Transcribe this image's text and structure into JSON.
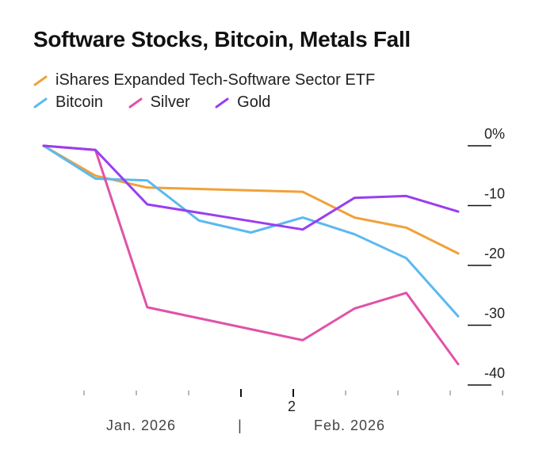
{
  "chart_data": {
    "type": "line",
    "title": "Software Stocks, Bitcoin, Metals Fall",
    "ylabel": "",
    "xlabel": "",
    "ylim": [
      -40,
      0
    ],
    "y_ticks": [
      0,
      -10,
      -20,
      -30,
      -40
    ],
    "y_tick_labels": [
      "0%",
      "-10",
      "-20",
      "-30",
      "-40"
    ],
    "x_tick_count": 9,
    "x_tick_label": "2",
    "month_labels": [
      "Jan. 2026",
      "Feb. 2026"
    ],
    "month_separator": "|",
    "x": [
      0,
      1,
      2,
      3,
      4,
      5,
      6,
      7,
      8
    ],
    "series": [
      {
        "name": "iShares Expanded Tech-Software Sector ETF",
        "color": "#f0a23a",
        "values": [
          0,
          -5,
          -7,
          null,
          null,
          -7.7,
          -12,
          -13.7,
          -18
        ]
      },
      {
        "name": "Bitcoin",
        "color": "#5bb9ef",
        "values": [
          0,
          -5.5,
          -5.8,
          -12.5,
          -14.5,
          -12,
          -14.8,
          -18.8,
          -28.5
        ]
      },
      {
        "name": "Silver",
        "color": "#e052a8",
        "values": [
          0,
          -0.7,
          -27,
          null,
          null,
          -32.5,
          -27.2,
          -24.6,
          -36.5
        ]
      },
      {
        "name": "Gold",
        "color": "#9a3ef0",
        "values": [
          0,
          -0.7,
          -9.8,
          null,
          null,
          -14,
          -8.7,
          -8.4,
          -11
        ]
      }
    ]
  }
}
